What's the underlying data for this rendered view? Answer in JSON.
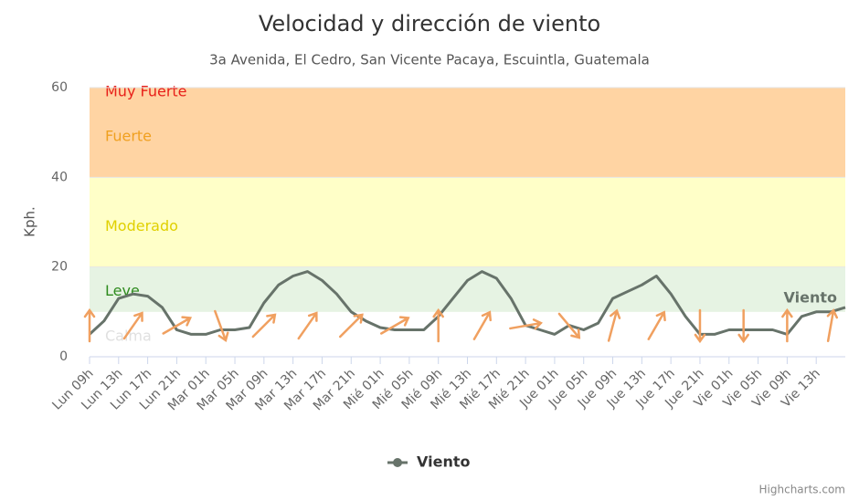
{
  "chart_data": {
    "type": "line",
    "title": "Velocidad y dirección de viento",
    "subtitle": "3a Avenida, El Cedro, San Vicente Pacaya, Escuintla, Guatemala",
    "y_axis_label": "Kph.",
    "ylim": [
      0,
      60
    ],
    "yticks": [
      0,
      20,
      40,
      60
    ],
    "grid": true,
    "legend": "bottom",
    "credits": "Highcharts.com",
    "bands": [
      {
        "label": "Calma",
        "from": 0,
        "to": 10,
        "color": "#ffffff",
        "text_color": "#e0e0e0"
      },
      {
        "label": "Leve",
        "from": 10,
        "to": 20,
        "color": "#e6f3e3",
        "text_color": "#2e8b1e"
      },
      {
        "label": "Moderado",
        "from": 20,
        "to": 40,
        "color": "#ffffc8",
        "text_color": "#e0d000"
      },
      {
        "label": "Fuerte",
        "from": 40,
        "to": 60,
        "color": "#ffd4a3",
        "text_color": "#f0a020"
      },
      {
        "label": "Muy Fuerte",
        "from": 60,
        "color": "#ffd4a3",
        "text_color": "#e8201a"
      }
    ],
    "categories": [
      "Lun 09h",
      null,
      "Lun 13h",
      null,
      "Lun 17h",
      null,
      "Lun 21h",
      null,
      "Mar 01h",
      null,
      "Mar 05h",
      null,
      "Mar 09h",
      null,
      "Mar 13h",
      null,
      "Mar 17h",
      null,
      "Mar 21h",
      null,
      "Mié 01h",
      null,
      "Mié 05h",
      null,
      "Mié 09h",
      null,
      "Mié 13h",
      null,
      "Mié 17h",
      null,
      "Mié 21h",
      null,
      "Jue 01h",
      null,
      "Jue 05h",
      null,
      "Jue 09h",
      null,
      "Jue 13h",
      null,
      "Jue 17h",
      null,
      "Jue 21h",
      null,
      "Vie 01h",
      null,
      "Vie 05h",
      null,
      "Vie 09h",
      null,
      "Vie 13h",
      null,
      null
    ],
    "series": [
      {
        "name": "Viento",
        "color": "#67736a",
        "values": [
          5,
          8,
          13,
          14,
          13.5,
          11,
          6,
          5,
          5,
          6,
          6,
          6.5,
          12,
          16,
          18,
          19,
          17,
          14,
          10,
          8,
          6.5,
          6,
          6,
          6,
          9,
          13,
          17,
          19,
          17.5,
          13,
          7,
          6,
          5,
          7,
          6,
          7.5,
          13,
          14.5,
          16,
          18,
          14,
          9,
          5,
          5,
          6,
          6,
          6,
          6,
          5,
          9,
          10,
          10,
          11
        ],
        "directions": [
          0,
          null,
          null,
          35,
          null,
          null,
          60,
          null,
          null,
          160,
          null,
          null,
          45,
          null,
          null,
          35,
          null,
          null,
          45,
          null,
          null,
          60,
          null,
          null,
          0,
          null,
          null,
          30,
          null,
          null,
          80,
          null,
          null,
          140,
          null,
          null,
          15,
          null,
          null,
          30,
          null,
          null,
          180,
          null,
          null,
          180,
          null,
          null,
          0,
          null,
          null,
          10,
          null
        ],
        "arrow_color": "#f0a060"
      }
    ]
  }
}
